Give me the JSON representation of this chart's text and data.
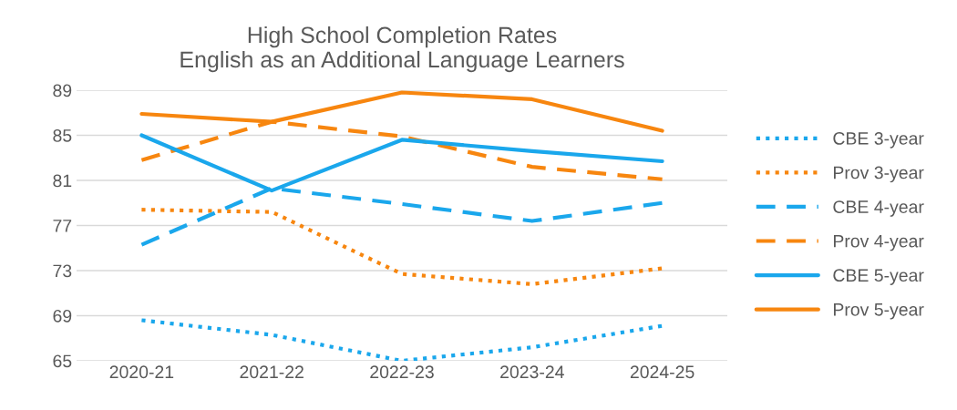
{
  "chart_data": {
    "type": "line",
    "title": "High School Completion Rates\nEnglish as an Additional Language Learners",
    "categories": [
      "2020-21",
      "2021-22",
      "2022-23",
      "2023-24",
      "2024-25"
    ],
    "series": [
      {
        "name": "CBE 3-year",
        "color": "#1aa7ec",
        "line_style": "dotted",
        "values": [
          68.6,
          67.3,
          65.0,
          66.2,
          68.1
        ]
      },
      {
        "name": "Prov 3-year",
        "color": "#f7860f",
        "line_style": "dotted",
        "values": [
          78.4,
          78.2,
          72.7,
          71.8,
          73.2
        ]
      },
      {
        "name": "CBE 4-year",
        "color": "#1aa7ec",
        "line_style": "dashed",
        "values": [
          75.3,
          80.3,
          78.9,
          77.4,
          79.0
        ]
      },
      {
        "name": "Prov 4-year",
        "color": "#f7860f",
        "line_style": "dashed",
        "values": [
          82.8,
          86.2,
          84.9,
          82.2,
          81.1
        ]
      },
      {
        "name": "CBE 5-year",
        "color": "#1aa7ec",
        "line_style": "solid",
        "values": [
          85.0,
          80.1,
          84.6,
          83.6,
          82.7
        ]
      },
      {
        "name": "Prov 5-year",
        "color": "#f7860f",
        "line_style": "solid",
        "values": [
          86.9,
          86.2,
          88.8,
          88.2,
          85.4
        ]
      }
    ],
    "ylim": [
      65,
      89
    ],
    "yticks": [
      65,
      69,
      73,
      77,
      81,
      85,
      89
    ],
    "grid": "y",
    "legend": "right",
    "marker": "none"
  }
}
